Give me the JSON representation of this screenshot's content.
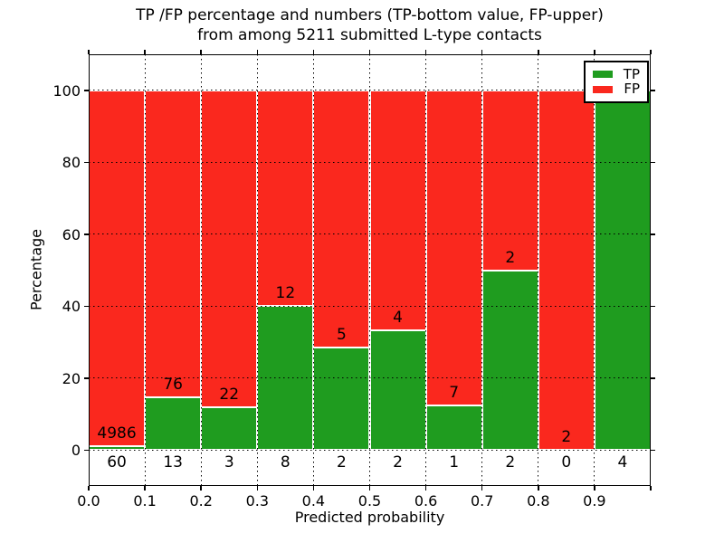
{
  "title": {
    "line1": "TP /FP percentage and numbers (TP-bottom value, FP-upper)",
    "line2": "from among 5211 submitted L-type contacts"
  },
  "axes": {
    "xlabel": "Predicted probability",
    "ylabel": "Percentage",
    "x_tick_labels": [
      "0.0",
      "0.1",
      "0.2",
      "0.3",
      "0.4",
      "0.5",
      "0.6",
      "0.7",
      "0.8",
      "0.9"
    ],
    "y_tick_labels": [
      "0",
      "20",
      "40",
      "60",
      "80",
      "100"
    ]
  },
  "legend": {
    "position": "upper right",
    "items": [
      {
        "label": "TP",
        "color": "#1f9c1f"
      },
      {
        "label": "FP",
        "color": "#fa281e"
      }
    ]
  },
  "colors": {
    "tp": "#1f9c1f",
    "fp": "#fa281e",
    "grid": "#000000",
    "background": "#ffffff"
  },
  "chart_data": {
    "type": "bar",
    "stacked": true,
    "normalized_to": 100,
    "title": "TP /FP percentage and numbers (TP-bottom value, FP-upper) from among 5211 submitted L-type contacts",
    "xlabel": "Predicted probability",
    "ylabel": "Percentage",
    "xlim": [
      0,
      1
    ],
    "ylim": [
      -10,
      110
    ],
    "grid": true,
    "total_submitted": 5211,
    "bins": [
      {
        "x0": 0.0,
        "x1": 0.1,
        "tp": 60,
        "fp": 4986,
        "fp_label_hidden": false
      },
      {
        "x0": 0.1,
        "x1": 0.2,
        "tp": 13,
        "fp": 76,
        "fp_label_hidden": false
      },
      {
        "x0": 0.2,
        "x1": 0.3,
        "tp": 3,
        "fp": 22,
        "fp_label_hidden": false
      },
      {
        "x0": 0.3,
        "x1": 0.4,
        "tp": 8,
        "fp": 12,
        "fp_label_hidden": false
      },
      {
        "x0": 0.4,
        "x1": 0.5,
        "tp": 2,
        "fp": 5,
        "fp_label_hidden": false
      },
      {
        "x0": 0.5,
        "x1": 0.6,
        "tp": 2,
        "fp": 4,
        "fp_label_hidden": false
      },
      {
        "x0": 0.6,
        "x1": 0.7,
        "tp": 1,
        "fp": 7,
        "fp_label_hidden": false
      },
      {
        "x0": 0.7,
        "x1": 0.8,
        "tp": 2,
        "fp": 2,
        "fp_label_hidden": false
      },
      {
        "x0": 0.8,
        "x1": 0.9,
        "tp": 0,
        "fp": 2,
        "fp_label_hidden": false
      },
      {
        "x0": 0.9,
        "x1": 1.0,
        "tp": 4,
        "fp": 0,
        "fp_label_hidden": true
      }
    ],
    "series": [
      {
        "name": "TP",
        "values_pct": [
          1.19,
          14.61,
          12.0,
          40.0,
          28.57,
          33.33,
          12.5,
          50.0,
          0.0,
          100.0
        ]
      },
      {
        "name": "FP",
        "values_pct": [
          98.81,
          85.39,
          88.0,
          60.0,
          71.43,
          66.67,
          87.5,
          50.0,
          100.0,
          0.0
        ]
      }
    ]
  }
}
